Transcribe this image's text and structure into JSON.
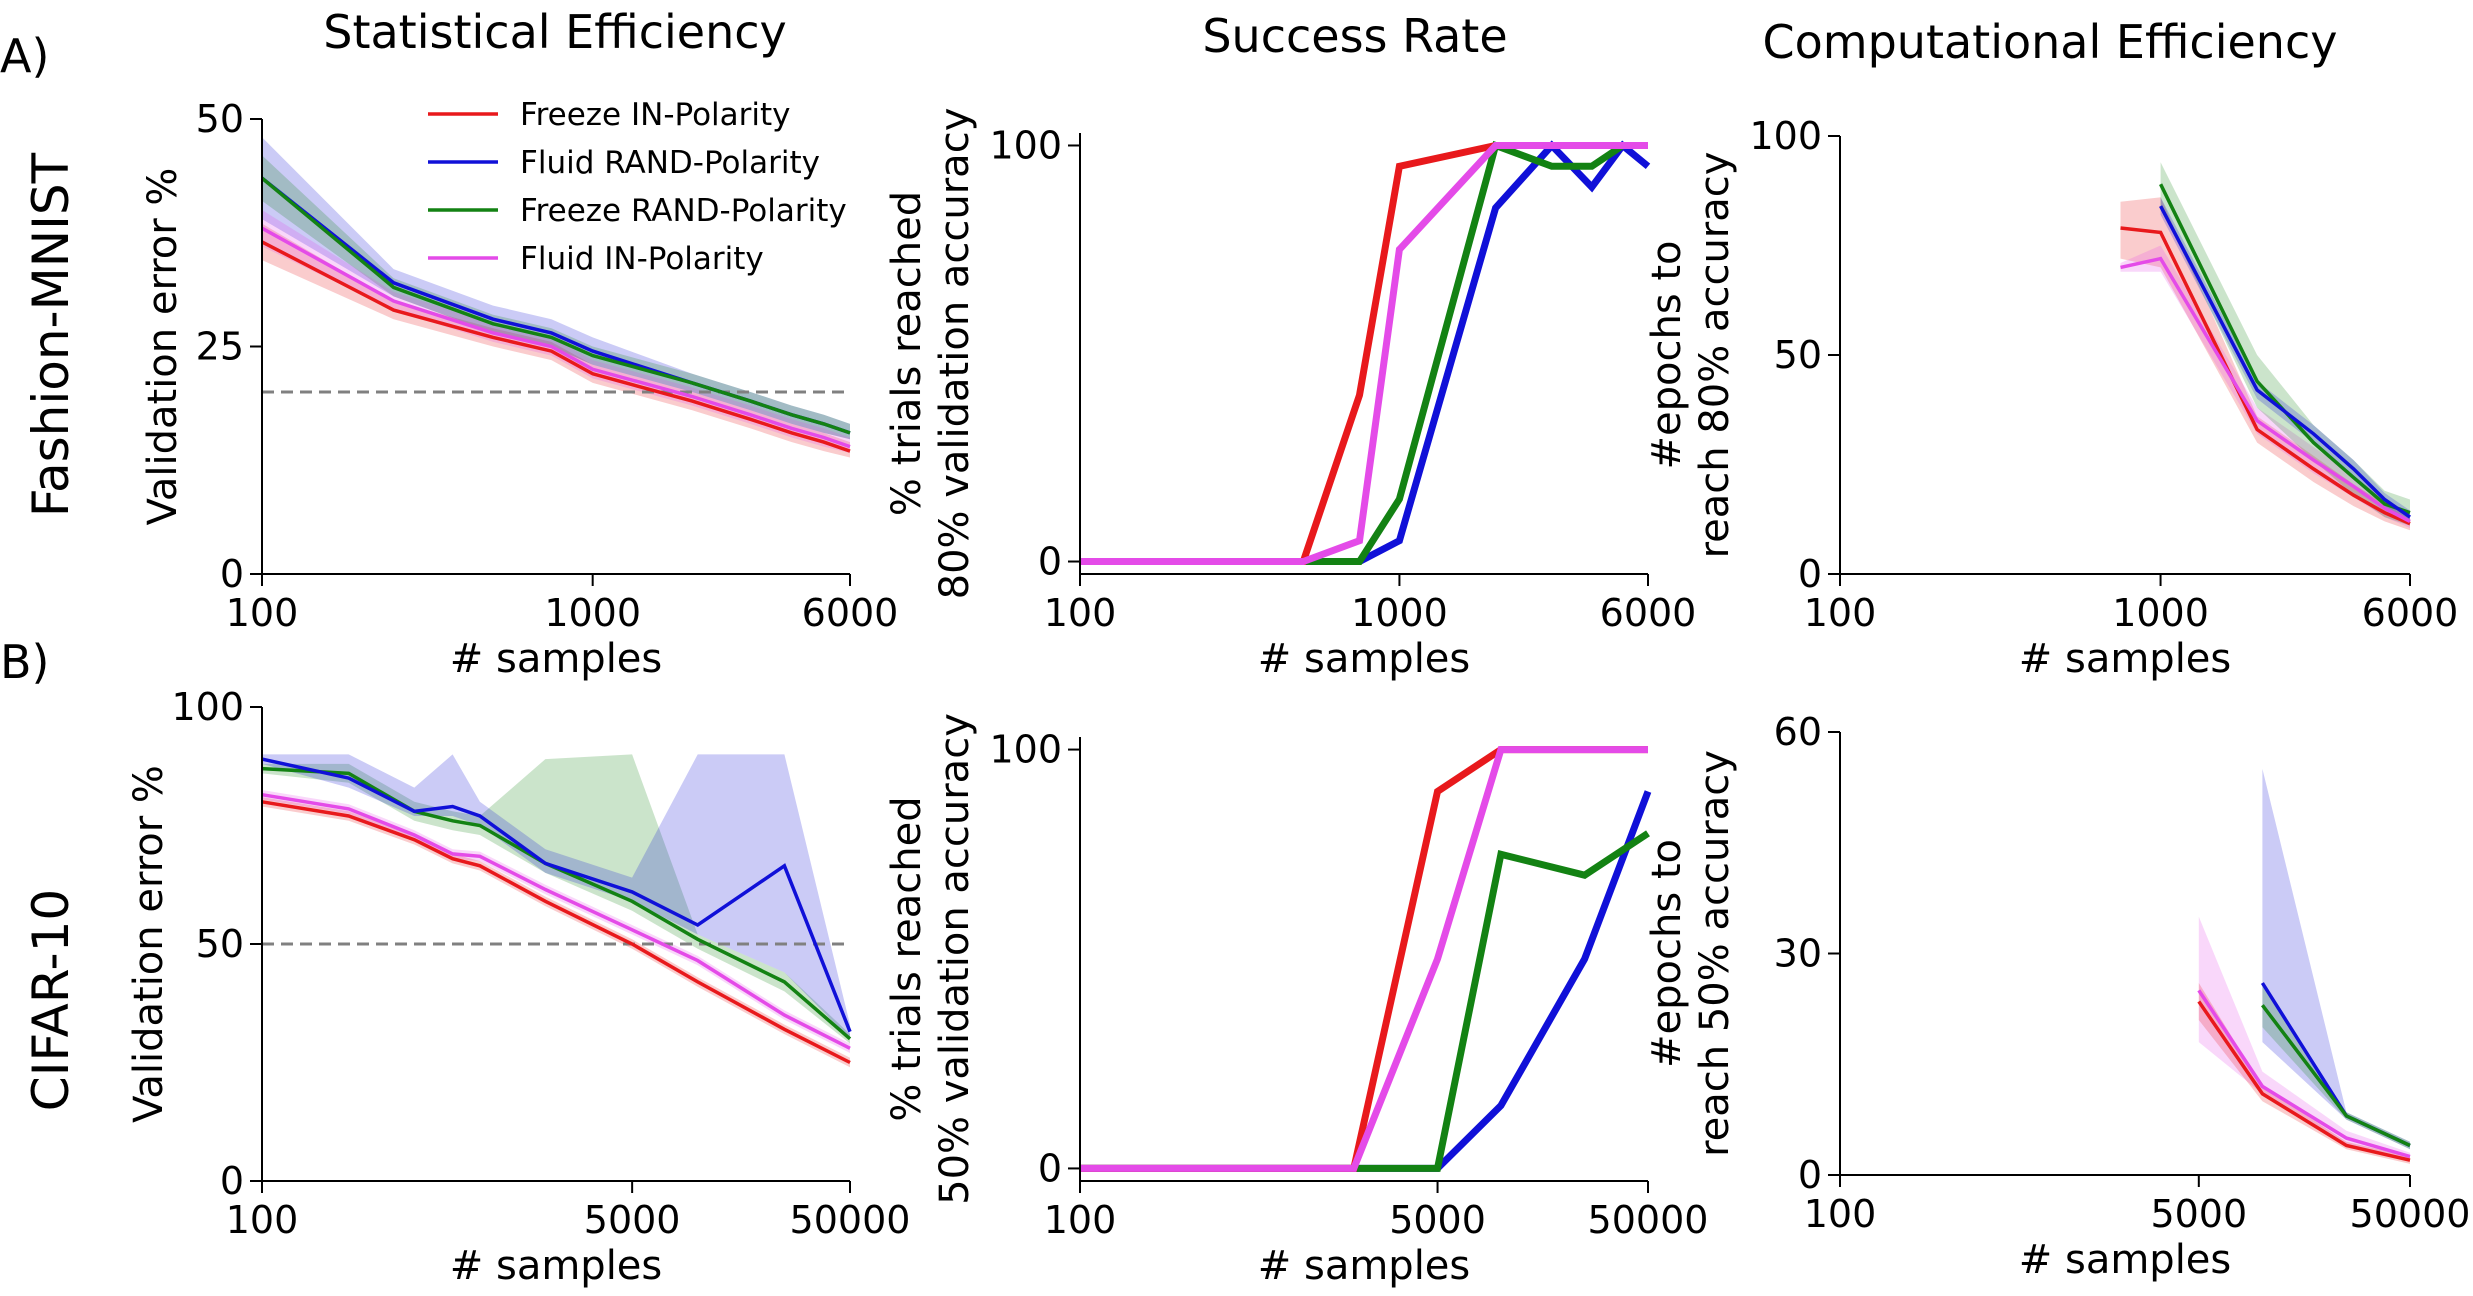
{
  "figure": {
    "column_titles": [
      "Statistical Efficiency",
      "Success Rate",
      "Computational Efficiency"
    ],
    "row_letters": [
      "A)",
      "B)"
    ],
    "row_labels": [
      "Fashion-MNIST",
      "CIFAR-10"
    ]
  },
  "colors": {
    "Freeze IN-Polarity": "#e8191c",
    "Fluid RAND-Polarity": "#1010d8",
    "Freeze RAND-Polarity": "#138213",
    "Fluid IN-Polarity": "#e44be8",
    "threshold": "#808080"
  },
  "chart_data": [
    {
      "id": "fmnist-stat",
      "type": "line",
      "xscale": "log",
      "xlim": [
        100,
        6000
      ],
      "xticks": [
        100,
        1000,
        6000
      ],
      "xtick_labels": [
        "100",
        "1000",
        "6000"
      ],
      "ylim": [
        0,
        50
      ],
      "yticks": [
        0,
        25,
        50
      ],
      "ytick_labels": [
        "0",
        "25",
        "50"
      ],
      "xlabel": "# samples",
      "ylabel": "Validation error %",
      "threshold": 20,
      "legend": [
        "Freeze IN-Polarity",
        "Fluid RAND-Polarity",
        "Freeze RAND-Polarity",
        "Fluid IN-Polarity"
      ],
      "series": [
        {
          "name": "Freeze IN-Polarity",
          "x": [
            100,
            250,
            500,
            750,
            1000,
            2000,
            3000,
            4000,
            5000,
            6000
          ],
          "y": [
            36.5,
            29,
            26,
            24.5,
            22,
            19,
            17,
            15.5,
            14.5,
            13.5
          ],
          "lo": [
            34.5,
            28,
            25,
            23.5,
            21,
            18,
            16,
            14.5,
            13.5,
            12.8
          ],
          "hi": [
            38.5,
            30,
            27,
            25.5,
            23,
            20,
            18,
            16.5,
            15.5,
            14.5
          ]
        },
        {
          "name": "Fluid RAND-Polarity",
          "x": [
            100,
            250,
            500,
            750,
            1000,
            2000,
            3000,
            4000,
            5000,
            6000
          ],
          "y": [
            43.5,
            32,
            28,
            26.5,
            24.5,
            21,
            19,
            17.5,
            16.5,
            15.5
          ],
          "lo": [
            39,
            30.5,
            26.5,
            25,
            23,
            20,
            18,
            16.5,
            15.5,
            14.8
          ],
          "hi": [
            48,
            33.5,
            29.5,
            28,
            26,
            22,
            20,
            18.5,
            17.5,
            16.5
          ]
        },
        {
          "name": "Freeze RAND-Polarity",
          "x": [
            100,
            250,
            500,
            750,
            1000,
            2000,
            3000,
            4000,
            5000,
            6000
          ],
          "y": [
            43.5,
            31.5,
            27.5,
            26,
            24,
            21,
            19,
            17.5,
            16.5,
            15.5
          ],
          "lo": [
            41,
            30.5,
            26.5,
            25,
            23,
            20,
            18,
            16.5,
            15.5,
            14.8
          ],
          "hi": [
            46,
            32.5,
            28.5,
            27,
            25,
            22,
            20,
            18.5,
            17.5,
            16.5
          ]
        },
        {
          "name": "Fluid IN-Polarity",
          "x": [
            100,
            250,
            500,
            750,
            1000,
            2000,
            3000,
            4000,
            5000,
            6000
          ],
          "y": [
            38,
            30,
            26.5,
            25,
            22.5,
            19.5,
            17.5,
            16,
            15,
            14
          ],
          "lo": [
            36,
            29,
            25.5,
            24,
            21.5,
            18.5,
            16.5,
            15,
            14,
            13.3
          ],
          "hi": [
            40,
            31,
            27.5,
            26,
            23.5,
            20.5,
            18.5,
            17,
            16,
            15
          ]
        }
      ]
    },
    {
      "id": "fmnist-success",
      "type": "line",
      "xscale": "log",
      "xlim": [
        100,
        6000
      ],
      "xticks": [
        100,
        1000,
        6000
      ],
      "xtick_labels": [
        "100",
        "1000",
        "6000"
      ],
      "ylim": [
        -3,
        103
      ],
      "yticks": [
        0,
        100
      ],
      "ytick_labels": [
        "0",
        "100"
      ],
      "xlabel": "# samples",
      "ylabel": [
        "% trials reached",
        "80% validation accuracy"
      ],
      "series": [
        {
          "name": "Fluid RAND-Polarity",
          "x": [
            100,
            500,
            750,
            1000,
            2000,
            3000,
            4000,
            5000,
            6000
          ],
          "y": [
            0,
            0,
            0,
            5,
            85,
            100,
            90,
            100,
            95
          ]
        },
        {
          "name": "Freeze RAND-Polarity",
          "x": [
            100,
            500,
            750,
            1000,
            2000,
            3000,
            4000,
            5000,
            6000
          ],
          "y": [
            0,
            0,
            0,
            15,
            100,
            95,
            95,
            100,
            100
          ]
        },
        {
          "name": "Freeze IN-Polarity",
          "x": [
            100,
            500,
            750,
            1000,
            2000,
            3000,
            4000,
            5000,
            6000
          ],
          "y": [
            0,
            0,
            40,
            95,
            100,
            100,
            100,
            100,
            100
          ]
        },
        {
          "name": "Fluid IN-Polarity",
          "x": [
            100,
            500,
            750,
            1000,
            2000,
            3000,
            4000,
            5000,
            6000
          ],
          "y": [
            0,
            0,
            5,
            75,
            100,
            100,
            100,
            100,
            100
          ]
        }
      ]
    },
    {
      "id": "fmnist-comp",
      "type": "line",
      "xscale": "log",
      "xlim": [
        100,
        6000
      ],
      "xticks": [
        100,
        1000,
        6000
      ],
      "xtick_labels": [
        "100",
        "1000",
        "6000"
      ],
      "ylim": [
        0,
        100
      ],
      "yticks": [
        0,
        50,
        100
      ],
      "ytick_labels": [
        "0",
        "50",
        "100"
      ],
      "xlabel": "# samples",
      "ylabel": [
        "#epochs to",
        "reach 80% accuracy"
      ],
      "series": [
        {
          "name": "Freeze IN-Polarity",
          "x": [
            750,
            1000,
            2000,
            3000,
            4000,
            5000,
            6000
          ],
          "y": [
            79,
            78,
            33,
            24,
            18,
            14,
            11.5
          ],
          "lo": [
            72,
            70,
            30,
            21,
            15.5,
            12,
            10
          ],
          "hi": [
            85,
            86,
            36,
            27,
            20.5,
            16,
            13
          ]
        },
        {
          "name": "Fluid IN-Polarity",
          "x": [
            750,
            1000,
            2000,
            3000,
            4000,
            5000,
            6000
          ],
          "y": [
            70,
            72,
            35,
            26,
            20,
            15,
            12
          ],
          "lo": [
            69,
            69,
            32,
            23,
            17.5,
            13,
            10.5
          ],
          "hi": [
            71,
            75,
            38,
            29,
            22.5,
            17,
            13.5
          ]
        },
        {
          "name": "Freeze RAND-Polarity",
          "x": [
            1000,
            2000,
            3000,
            4000,
            5000,
            6000
          ],
          "y": [
            89,
            44,
            30,
            22,
            16,
            14
          ],
          "lo": [
            84,
            38,
            26,
            18,
            13,
            11
          ],
          "hi": [
            94,
            50,
            34,
            26,
            19,
            17
          ]
        },
        {
          "name": "Fluid RAND-Polarity",
          "x": [
            1000,
            2000,
            3000,
            4000,
            5000,
            6000
          ],
          "y": [
            84,
            42,
            32,
            24,
            17,
            13
          ],
          "lo": [
            82,
            40,
            30,
            22,
            15.5,
            11.5
          ],
          "hi": [
            86,
            44,
            34,
            26,
            18.5,
            14.5
          ]
        }
      ]
    },
    {
      "id": "cifar-stat",
      "type": "line",
      "xscale": "log",
      "xlim": [
        100,
        50000
      ],
      "xticks": [
        100,
        5000,
        50000
      ],
      "xtick_labels": [
        "100",
        "5000",
        "50000"
      ],
      "ylim": [
        0,
        100
      ],
      "yticks": [
        0,
        50,
        100
      ],
      "ytick_labels": [
        "0",
        "50",
        "100"
      ],
      "xlabel": "# samples",
      "ylabel": "Validation error %",
      "threshold": 50,
      "series": [
        {
          "name": "Freeze IN-Polarity",
          "x": [
            100,
            250,
            500,
            750,
            1000,
            2000,
            5000,
            10000,
            25000,
            50000
          ],
          "y": [
            80,
            77,
            72,
            68,
            66.5,
            59,
            50,
            42,
            32,
            25
          ],
          "lo": [
            79,
            76,
            71,
            67,
            65.5,
            58,
            49,
            41,
            31,
            24
          ],
          "hi": [
            81,
            78,
            73,
            69,
            67.5,
            60,
            51,
            43,
            33,
            26
          ]
        },
        {
          "name": "Fluid IN-Polarity",
          "x": [
            100,
            250,
            500,
            750,
            1000,
            2000,
            5000,
            10000,
            25000,
            50000
          ],
          "y": [
            81.5,
            78.5,
            73,
            69,
            68.5,
            61.5,
            53,
            46.5,
            35,
            28
          ],
          "lo": [
            80.5,
            77.5,
            72,
            68,
            67.5,
            60.5,
            52,
            45.5,
            34,
            27
          ],
          "hi": [
            82.5,
            79.5,
            74,
            70,
            69.5,
            62.5,
            54,
            47.5,
            36,
            29
          ]
        },
        {
          "name": "Freeze RAND-Polarity",
          "x": [
            100,
            250,
            500,
            750,
            1000,
            2000,
            5000,
            10000,
            25000,
            50000
          ],
          "y": [
            87,
            86,
            78,
            76,
            75,
            67,
            59,
            51,
            42,
            30
          ],
          "lo": [
            86,
            84,
            76,
            74,
            73,
            65,
            57,
            49,
            40,
            29
          ],
          "hi": [
            88,
            88,
            80,
            78,
            77,
            89,
            90,
            52,
            44,
            31
          ]
        },
        {
          "name": "Fluid RAND-Polarity",
          "x": [
            100,
            250,
            500,
            750,
            1000,
            2000,
            5000,
            10000,
            25000,
            50000
          ],
          "y": [
            89,
            85,
            78,
            79,
            77,
            67,
            61,
            54,
            66.5,
            31.5
          ],
          "lo": [
            88,
            83,
            77,
            77,
            75,
            65,
            59,
            52,
            44,
            30
          ],
          "hi": [
            90,
            90,
            83,
            90,
            80,
            70,
            64,
            90,
            90,
            33
          ]
        }
      ]
    },
    {
      "id": "cifar-success",
      "type": "line",
      "xscale": "log",
      "xlim": [
        100,
        50000
      ],
      "xticks": [
        100,
        5000,
        50000
      ],
      "xtick_labels": [
        "100",
        "5000",
        "50000"
      ],
      "ylim": [
        -3,
        103
      ],
      "yticks": [
        0,
        100
      ],
      "ytick_labels": [
        "0",
        "100"
      ],
      "xlabel": "# samples",
      "ylabel": [
        "% trials reached",
        "50% validation accuracy"
      ],
      "series": [
        {
          "name": "Fluid RAND-Polarity",
          "x": [
            100,
            2000,
            5000,
            10000,
            25000,
            50000
          ],
          "y": [
            0,
            0,
            0,
            15,
            50,
            90
          ]
        },
        {
          "name": "Freeze RAND-Polarity",
          "x": [
            100,
            2000,
            5000,
            10000,
            25000,
            50000
          ],
          "y": [
            0,
            0,
            0,
            75,
            70,
            80
          ]
        },
        {
          "name": "Freeze IN-Polarity",
          "x": [
            100,
            2000,
            5000,
            10000,
            25000,
            50000
          ],
          "y": [
            0,
            0,
            90,
            100,
            100,
            100
          ]
        },
        {
          "name": "Fluid IN-Polarity",
          "x": [
            100,
            2000,
            5000,
            10000,
            25000,
            50000
          ],
          "y": [
            0,
            0,
            50,
            100,
            100,
            100
          ]
        }
      ]
    },
    {
      "id": "cifar-comp",
      "type": "line",
      "xscale": "log",
      "xlim": [
        100,
        50000
      ],
      "xticks": [
        100,
        5000,
        50000
      ],
      "xtick_labels": [
        "100",
        "5000",
        "50000"
      ],
      "ylim": [
        0,
        60
      ],
      "yticks": [
        0,
        30,
        60
      ],
      "ytick_labels": [
        "0",
        "30",
        "60"
      ],
      "xlabel": "# samples",
      "ylabel": [
        "#epochs to",
        "reach 50% accuracy"
      ],
      "series": [
        {
          "name": "Fluid IN-Polarity",
          "x": [
            5000,
            10000,
            25000,
            50000
          ],
          "y": [
            25,
            12,
            5,
            2.5
          ],
          "lo": [
            18,
            11,
            4,
            2
          ],
          "hi": [
            35,
            14,
            6,
            3
          ]
        },
        {
          "name": "Freeze IN-Polarity",
          "x": [
            5000,
            10000,
            25000,
            50000
          ],
          "y": [
            23.5,
            11,
            4,
            2
          ],
          "lo": [
            21,
            10,
            3.5,
            1.5
          ],
          "hi": [
            26,
            12,
            4.5,
            2.5
          ]
        },
        {
          "name": "Fluid RAND-Polarity",
          "x": [
            10000,
            25000,
            50000
          ],
          "y": [
            26,
            8,
            4
          ],
          "lo": [
            18,
            7.5,
            3.5
          ],
          "hi": [
            55,
            8.5,
            4.5
          ]
        },
        {
          "name": "Freeze RAND-Polarity",
          "x": [
            10000,
            25000,
            50000
          ],
          "y": [
            23,
            8,
            4
          ],
          "lo": [
            20,
            7.5,
            3.5
          ],
          "hi": [
            26,
            8.5,
            4.5
          ]
        }
      ]
    }
  ]
}
